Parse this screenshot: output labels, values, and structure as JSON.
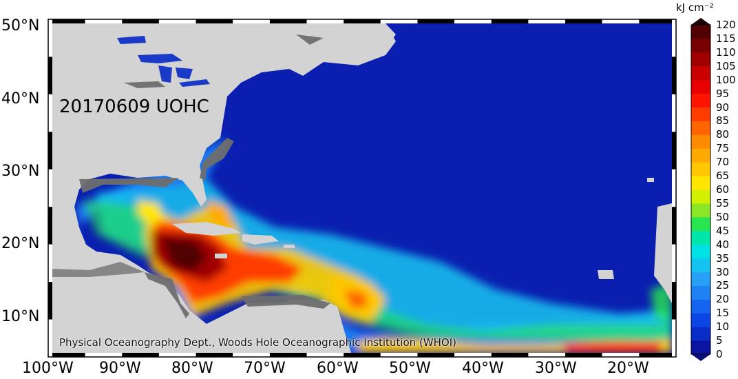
{
  "map": {
    "title": "20170609 UOHC",
    "credit": "Physical Oceanography Dept., Woods Hole Oceanographic Institution (WHOI)",
    "lat_labels": [
      "50°N",
      "40°N",
      "30°N",
      "20°N",
      "10°N"
    ],
    "lon_labels": [
      "100°W",
      "90°W",
      "80°W",
      "70°W",
      "60°W",
      "50°W",
      "40°W",
      "30°W",
      "20°W"
    ],
    "ocean_color": "#0a1fb0",
    "land_color": "#d3d3d3",
    "mask_color": "#6e6e6e"
  },
  "colorbar": {
    "units": "kJ cm⁻²",
    "ticks": [
      "0",
      "5",
      "10",
      "15",
      "20",
      "25",
      "30",
      "35",
      "40",
      "45",
      "50",
      "55",
      "60",
      "65",
      "70",
      "75",
      "80",
      "85",
      "90",
      "95",
      "100",
      "105",
      "110",
      "115",
      "120"
    ],
    "colors": [
      "#0a14a0",
      "#0a2dc8",
      "#0a46e6",
      "#1464f0",
      "#1e82f5",
      "#28a0f5",
      "#14c3f0",
      "#00e1e6",
      "#00e6aa",
      "#28e650",
      "#8ce628",
      "#d2f000",
      "#ffe600",
      "#ffc800",
      "#ffaa00",
      "#ff8c00",
      "#ff6400",
      "#ff3c00",
      "#ff1400",
      "#e60000",
      "#c80000",
      "#a00000",
      "#780000",
      "#500000"
    ]
  }
}
